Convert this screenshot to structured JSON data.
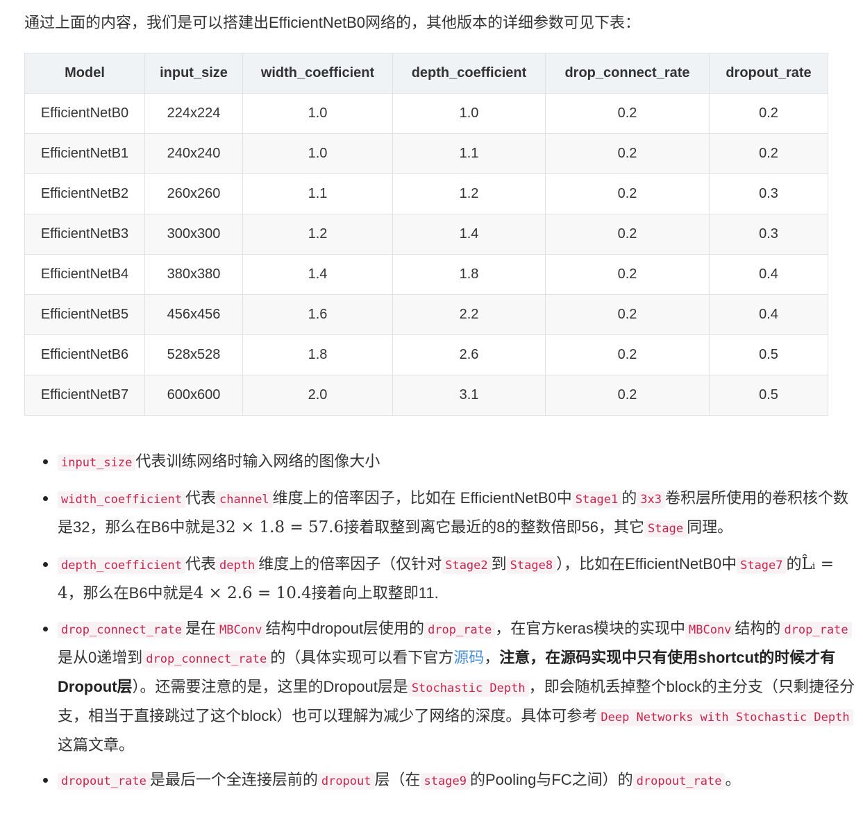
{
  "intro": "通过上面的内容，我们是可以搭建出EfficientNetB0网络的，其他版本的详细参数可见下表：",
  "table": {
    "headers": [
      "Model",
      "input_size",
      "width_coefficient",
      "depth_coefficient",
      "drop_connect_rate",
      "dropout_rate"
    ],
    "rows": [
      [
        "EfficientNetB0",
        "224x224",
        "1.0",
        "1.0",
        "0.2",
        "0.2"
      ],
      [
        "EfficientNetB1",
        "240x240",
        "1.0",
        "1.1",
        "0.2",
        "0.2"
      ],
      [
        "EfficientNetB2",
        "260x260",
        "1.1",
        "1.2",
        "0.2",
        "0.3"
      ],
      [
        "EfficientNetB3",
        "300x300",
        "1.2",
        "1.4",
        "0.2",
        "0.3"
      ],
      [
        "EfficientNetB4",
        "380x380",
        "1.4",
        "1.8",
        "0.2",
        "0.4"
      ],
      [
        "EfficientNetB5",
        "456x456",
        "1.6",
        "2.2",
        "0.2",
        "0.4"
      ],
      [
        "EfficientNetB6",
        "528x528",
        "1.8",
        "2.6",
        "0.2",
        "0.5"
      ],
      [
        "EfficientNetB7",
        "600x600",
        "2.0",
        "3.1",
        "0.2",
        "0.5"
      ]
    ]
  },
  "notes": {
    "n1": {
      "code1": "input_size",
      "t1": "代表训练网络时输入网络的图像大小"
    },
    "n2": {
      "code1": "width_coefficient",
      "t1": "代表",
      "code2": "channel",
      "t2": "维度上的倍率因子，比如在 EfficientNetB0中",
      "code3": "Stage1",
      "t3": "的",
      "code4": "3x3",
      "t4": "卷积层所使用的卷积核个数是32，那么在B6中就是",
      "math1": "32 × 1.8 = 57.6",
      "t5": "接着取整到离它最近的8的整数倍即56，其它",
      "code5": "Stage",
      "t6": "同理。"
    },
    "n3": {
      "code1": "depth_coefficient",
      "t1": "代表",
      "code2": "depth",
      "t2": "维度上的倍率因子（仅针对",
      "code3": "Stage2",
      "t3": "到",
      "code4": "Stage8",
      "t4": "），比如在EfficientNetB0中",
      "code5": "Stage7",
      "t5": "的",
      "math1": "L̂ᵢ = 4",
      "t6": "，那么在B6中就是",
      "math2": "4 × 2.6 = 10.4",
      "t7": "接着向上取整即11."
    },
    "n4": {
      "code1": "drop_connect_rate",
      "t1": "是在",
      "code2": "MBConv",
      "t2": "结构中dropout层使用的",
      "code3": "drop_rate",
      "t3": "，在官方keras模块的实现中",
      "code4": "MBConv",
      "t4": "结构的",
      "code5": "drop_rate",
      "t5": "是从0递增到",
      "code6": "drop_connect_rate",
      "t6": "的（具体实现可以看下官方",
      "link": "源码",
      "t7": "，",
      "bold": "注意，在源码实现中只有使用shortcut的时候才有Dropout层",
      "t8": "）。还需要注意的是，这里的Dropout层是",
      "code7": "Stochastic Depth",
      "t9": "，即会随机丢掉整个block的主分支（只剩捷径分支，相当于直接跳过了这个block）也可以理解为减少了网络的深度。具体可参考",
      "code8": "Deep Networks with Stochastic Depth",
      "t10": "这篇文章。"
    },
    "n5": {
      "code1": "dropout_rate",
      "t1": "是最后一个全连接层前的",
      "code2": "dropout",
      "t2": "层（在",
      "code3": "stage9",
      "t3": "的Pooling与FC之间）的",
      "code4": "dropout_rate",
      "t4": "。"
    }
  }
}
